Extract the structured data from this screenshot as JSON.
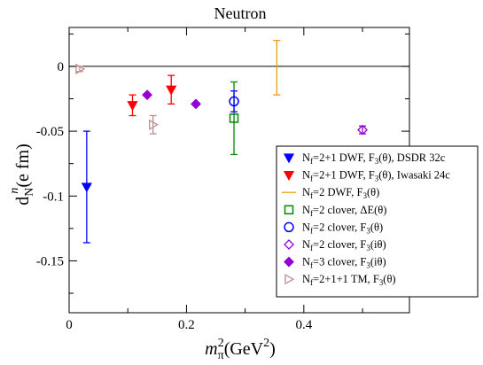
{
  "chart_data": {
    "type": "scatter",
    "title": "Neutron",
    "xlabel": {
      "base": "m",
      "sub": "π",
      "sup": "2",
      "rest": "(GeV",
      "sup2": "2",
      "close": ")"
    },
    "ylabel": {
      "base": "d",
      "sub": "N",
      "sup": "n",
      "rest": "(e fm)"
    },
    "xlim": [
      0,
      0.58
    ],
    "ylim": [
      -0.19,
      0.03
    ],
    "xticks": [
      0,
      0.2,
      0.4
    ],
    "xtick_labels": [
      "0",
      "0.2",
      "0.4"
    ],
    "yticks": [
      0,
      -0.05,
      -0.1,
      -0.15
    ],
    "ytick_labels": [
      "0",
      "-0.05",
      "-0.1",
      "-0.15"
    ],
    "zero_line": true,
    "grid": false,
    "legend_position": "lower-right",
    "series": [
      {
        "prefix": "N",
        "sub": "f",
        "label": "=2+1 DWF, F",
        "lsub": "3",
        "tail": "(θ), DSDR 32c",
        "marker": "triangle-down",
        "filled": true,
        "color": "#0000ff",
        "points": [
          {
            "x": 0.03,
            "y": -0.093,
            "err": 0.043
          }
        ]
      },
      {
        "prefix": "N",
        "sub": "f",
        "label": "=2+1 DWF, F",
        "lsub": "3",
        "tail": "(θ), Iwasaki 24c",
        "marker": "triangle-down",
        "filled": true,
        "color": "#ff0000",
        "points": [
          {
            "x": 0.108,
            "y": -0.03,
            "err": 0.008
          },
          {
            "x": 0.174,
            "y": -0.018,
            "err": 0.011
          }
        ]
      },
      {
        "prefix": "N",
        "sub": "f",
        "label": "=2 DWF, F",
        "lsub": "3",
        "tail": "(θ)",
        "marker": "line",
        "filled": false,
        "color": "#e5a00d",
        "points": [
          {
            "x": 0.354,
            "y": -0.001,
            "err": 0.021
          }
        ]
      },
      {
        "prefix": "N",
        "sub": "f",
        "label": "=2 clover, ΔE(θ)",
        "lsub": "",
        "tail": "",
        "marker": "square",
        "filled": false,
        "color": "#008800",
        "points": [
          {
            "x": 0.281,
            "y": -0.04,
            "err": 0.028
          }
        ]
      },
      {
        "prefix": "N",
        "sub": "f",
        "label": "=2 clover, F",
        "lsub": "3",
        "tail": "(θ)",
        "marker": "circle",
        "filled": false,
        "color": "#0000ff",
        "points": [
          {
            "x": 0.281,
            "y": -0.027,
            "err": 0.008
          }
        ]
      },
      {
        "prefix": "N",
        "sub": "f",
        "label": "=2 clover, F",
        "lsub": "3",
        "tail": "(iθ)",
        "marker": "diamond",
        "filled": false,
        "color": "#9400d3",
        "points": [
          {
            "x": 0.5,
            "y": -0.049,
            "err": 0.003
          }
        ]
      },
      {
        "prefix": "N",
        "sub": "f",
        "label": "=3 clover, F",
        "lsub": "3",
        "tail": "(iθ)",
        "marker": "diamond",
        "filled": true,
        "color": "#9400d3",
        "points": [
          {
            "x": 0.133,
            "y": -0.022,
            "err": 0
          },
          {
            "x": 0.216,
            "y": -0.029,
            "err": 0
          }
        ]
      },
      {
        "prefix": "N",
        "sub": "f",
        "label": "=2+1+1 TM, F",
        "lsub": "3",
        "tail": "(θ)",
        "marker": "triangle-right",
        "filled": false,
        "color": "#bc8f8f",
        "points": [
          {
            "x": 0.018,
            "y": -0.002,
            "err": 0.002
          },
          {
            "x": 0.143,
            "y": -0.045,
            "err": 0.007
          }
        ]
      }
    ]
  }
}
